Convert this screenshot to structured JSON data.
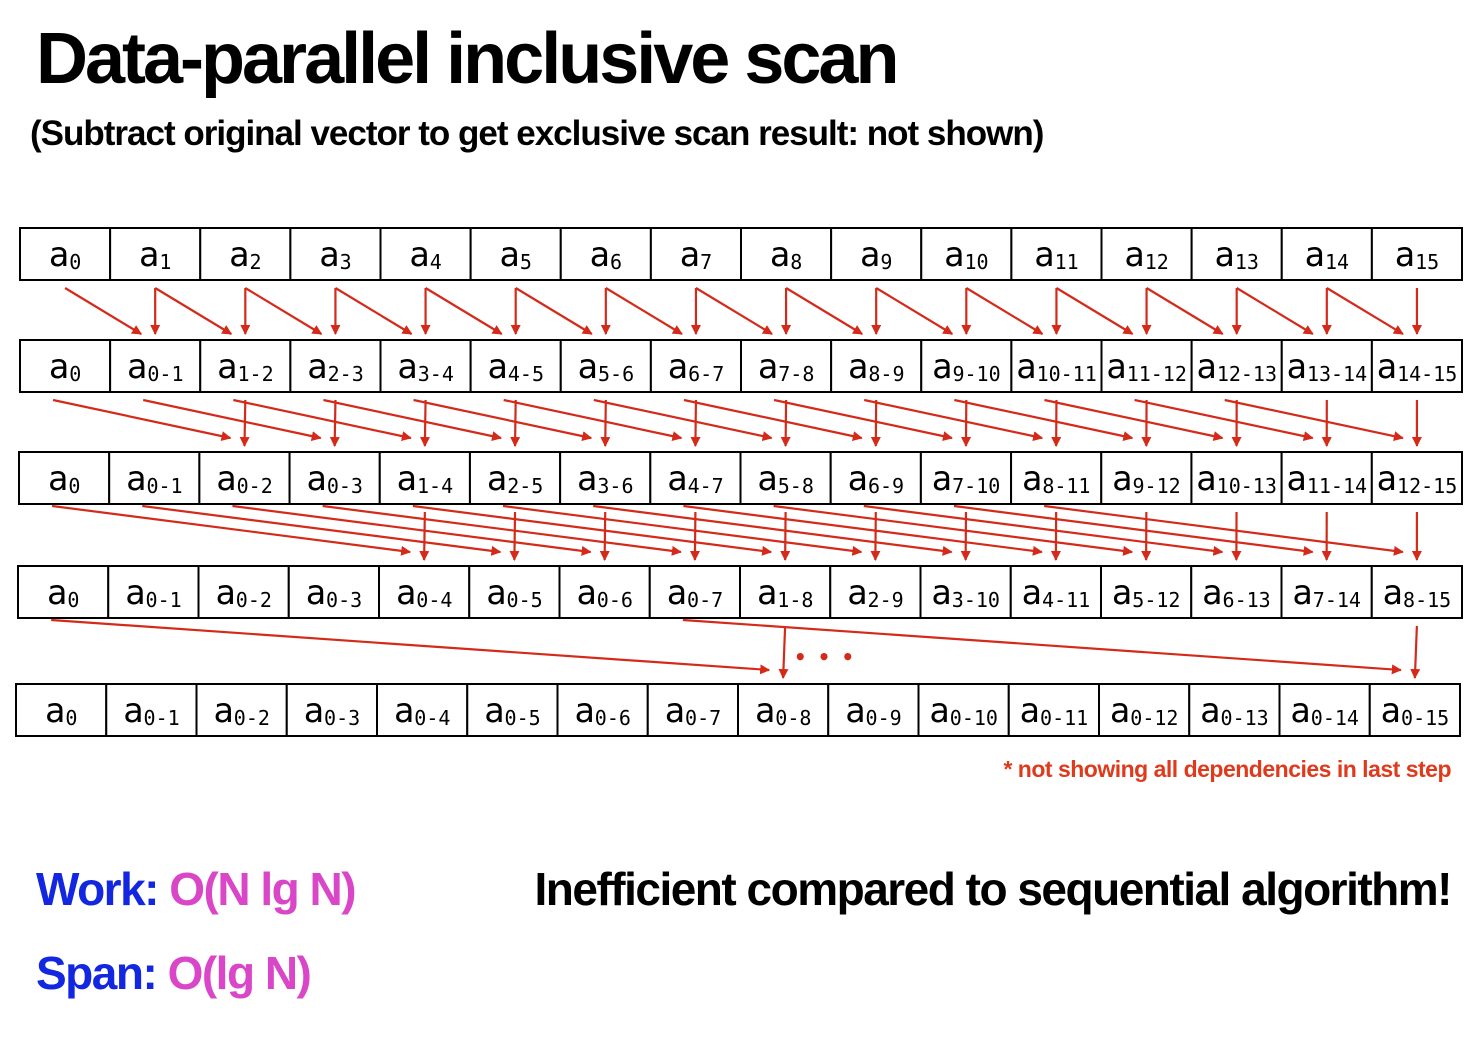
{
  "title": "Data-parallel inclusive scan",
  "subtitle": "(Subtract original vector to get exclusive scan result: not shown)",
  "colors": {
    "arrow": "#d42a1a",
    "note": "#e03a1c",
    "work_label": "#1326e0",
    "complexity": "#d946c8"
  },
  "rows": [
    [
      "0",
      "1",
      "2",
      "3",
      "4",
      "5",
      "6",
      "7",
      "8",
      "9",
      "10",
      "11",
      "12",
      "13",
      "14",
      "15"
    ],
    [
      "0",
      "0-1",
      "1-2",
      "2-3",
      "3-4",
      "4-5",
      "5-6",
      "6-7",
      "7-8",
      "8-9",
      "9-10",
      "10-11",
      "11-12",
      "12-13",
      "13-14",
      "14-15"
    ],
    [
      "0",
      "0-1",
      "0-2",
      "0-3",
      "1-4",
      "2-5",
      "3-6",
      "4-7",
      "5-8",
      "6-9",
      "7-10",
      "8-11",
      "9-12",
      "10-13",
      "11-14",
      "12-15"
    ],
    [
      "0",
      "0-1",
      "0-2",
      "0-3",
      "0-4",
      "0-5",
      "0-6",
      "0-7",
      "1-8",
      "2-9",
      "3-10",
      "4-11",
      "5-12",
      "6-13",
      "7-14",
      "8-15"
    ],
    [
      "0",
      "0-1",
      "0-2",
      "0-3",
      "0-4",
      "0-5",
      "0-6",
      "0-7",
      "0-8",
      "0-9",
      "0-10",
      "0-11",
      "0-12",
      "0-13",
      "0-14",
      "0-15"
    ]
  ],
  "cell_prefix": "a",
  "step_strides": [
    1,
    2,
    4,
    8
  ],
  "ellipsis": "• • •",
  "note": "* not showing all dependencies in last step",
  "work": {
    "label": "Work:",
    "value": "O(N lg N)"
  },
  "span": {
    "label": "Span:",
    "value": "O(lg N)"
  },
  "remark": "Inefficient compared to sequential algorithm!"
}
